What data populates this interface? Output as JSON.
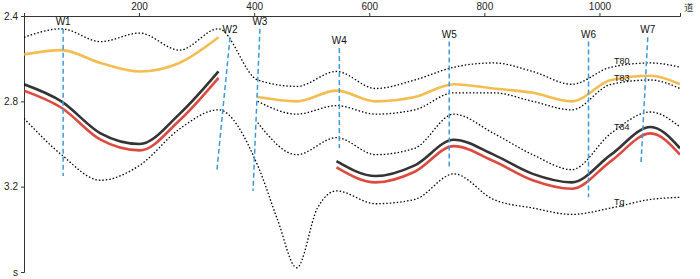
{
  "chart_data": {
    "type": "line",
    "x_label": "道",
    "xlim": [
      0,
      1140
    ],
    "xticks": [
      200,
      400,
      600,
      800,
      1000
    ],
    "ylim": [
      2.4,
      3.6
    ],
    "yticks": [
      2.4,
      2.8,
      3.2,
      {
        "value": 3.6,
        "label": "s"
      }
    ],
    "series": [
      {
        "color": "#f2b233",
        "line_style": "solid",
        "x": [
          0,
          65,
          133,
          201,
          270,
          338
        ],
        "values": [
          2.58,
          2.56,
          2.62,
          2.66,
          2.62,
          2.5
        ]
      },
      {
        "color": "#111111",
        "line_style": "solid",
        "x": [
          0,
          65,
          133,
          201,
          270,
          338
        ],
        "values": [
          2.72,
          2.8,
          2.95,
          3.0,
          2.86,
          2.66
        ]
      },
      {
        "color": "#d62a1e",
        "line_style": "solid",
        "x": [
          0,
          65,
          133,
          201,
          270,
          338
        ],
        "values": [
          2.75,
          2.83,
          2.98,
          3.03,
          2.89,
          2.69
        ]
      },
      {
        "color": "#f2b233",
        "line_style": "solid",
        "x": [
          406,
          474,
          543,
          611,
          679,
          747,
          816,
          884,
          952,
          1020,
          1089,
          1140
        ],
        "values": [
          2.78,
          2.8,
          2.75,
          2.8,
          2.78,
          2.72,
          2.74,
          2.76,
          2.8,
          2.7,
          2.68,
          2.72
        ]
      },
      {
        "color": "#111111",
        "line_style": "solid",
        "x": [
          543,
          611,
          679,
          747,
          816,
          884,
          952,
          1020,
          1089,
          1140
        ],
        "values": [
          3.08,
          3.15,
          3.1,
          2.98,
          3.05,
          3.14,
          3.18,
          3.05,
          2.92,
          3.02
        ]
      },
      {
        "color": "#d62a1e",
        "line_style": "solid",
        "x": [
          543,
          611,
          679,
          747,
          816,
          884,
          952,
          1020,
          1089,
          1140
        ],
        "values": [
          3.11,
          3.18,
          3.13,
          3.01,
          3.08,
          3.17,
          3.21,
          3.08,
          2.95,
          3.05
        ]
      },
      {
        "name": "T80",
        "color": "#000000",
        "line_style": "dotted",
        "x": [
          0,
          65,
          133,
          201,
          270,
          338,
          406,
          474,
          543,
          611,
          679,
          747,
          816,
          884,
          952,
          1020,
          1089,
          1140
        ],
        "values": [
          2.5,
          2.46,
          2.52,
          2.48,
          2.56,
          2.46,
          2.7,
          2.73,
          2.66,
          2.74,
          2.7,
          2.64,
          2.62,
          2.66,
          2.72,
          2.64,
          2.62,
          2.64
        ]
      },
      {
        "name": "T83",
        "color": "#000000",
        "line_style": "dotted",
        "x": [
          406,
          474,
          543,
          611,
          679,
          747,
          816,
          884,
          952,
          1020,
          1089,
          1140
        ],
        "values": [
          2.8,
          2.86,
          2.82,
          2.86,
          2.84,
          2.76,
          2.76,
          2.8,
          2.84,
          2.72,
          2.7,
          2.74
        ]
      },
      {
        "name": "T84",
        "color": "#000000",
        "line_style": "dotted",
        "x": [
          406,
          474,
          543,
          611,
          679,
          747,
          816,
          884,
          952,
          1020,
          1089,
          1140
        ],
        "values": [
          2.9,
          3.05,
          2.97,
          3.05,
          3.02,
          2.86,
          2.95,
          3.05,
          3.12,
          2.95,
          2.85,
          2.92
        ]
      },
      {
        "name": "Tg",
        "color": "#000000",
        "line_style": "dotted",
        "x": [
          0,
          65,
          133,
          201,
          270,
          338,
          406,
          440,
          474,
          510,
          543,
          611,
          679,
          747,
          816,
          884,
          952,
          1020,
          1089,
          1140
        ],
        "values": [
          2.88,
          3.05,
          3.17,
          3.1,
          2.93,
          2.84,
          3.1,
          3.35,
          3.58,
          3.3,
          3.22,
          3.28,
          3.26,
          3.14,
          3.26,
          3.3,
          3.33,
          3.3,
          3.26,
          3.25
        ]
      }
    ],
    "wells": [
      {
        "name": "W1",
        "x_top": 68,
        "x_bottom": 68,
        "t_top": 2.46,
        "t_bottom": 3.15
      },
      {
        "name": "W2",
        "x_top": 358,
        "x_bottom": 335,
        "t_top": 2.5,
        "t_bottom": 3.13
      },
      {
        "name": "W3",
        "x_top": 410,
        "x_bottom": 398,
        "t_top": 2.46,
        "t_bottom": 3.22
      },
      {
        "name": "W4",
        "x_top": 548,
        "x_bottom": 548,
        "t_top": 2.55,
        "t_bottom": 3.02
      },
      {
        "name": "W5",
        "x_top": 739,
        "x_bottom": 739,
        "t_top": 2.52,
        "t_bottom": 3.12
      },
      {
        "name": "W6",
        "x_top": 981,
        "x_bottom": 981,
        "t_top": 2.52,
        "t_bottom": 3.25
      },
      {
        "name": "W7",
        "x_top": 1084,
        "x_bottom": 1072,
        "t_top": 2.5,
        "t_bottom": 3.1
      }
    ]
  }
}
